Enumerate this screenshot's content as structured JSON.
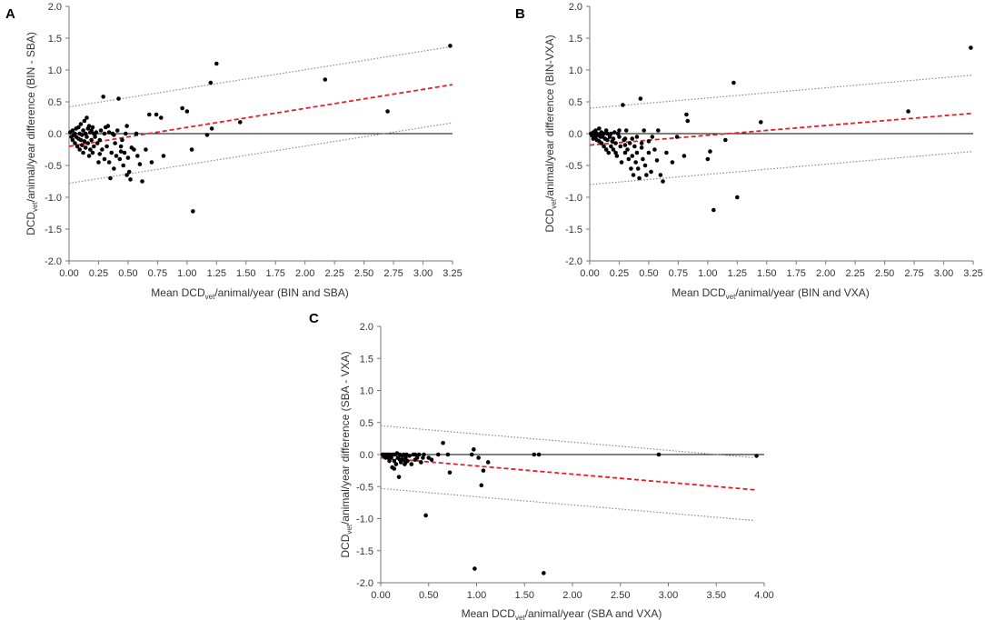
{
  "chart_data": [
    {
      "panel": "A",
      "type": "scatter",
      "xlabel_parts": [
        "Mean DCD",
        "vet",
        "/animal/year (BIN and SBA)"
      ],
      "ylabel_parts": [
        "DCD",
        "vet",
        "/animal/year difference (BIN - SBA)"
      ],
      "xlim": [
        0,
        3.25
      ],
      "ylim": [
        -2.0,
        2.0
      ],
      "xticks": [
        "0.00",
        "0.25",
        "0.50",
        "0.75",
        "1.00",
        "1.25",
        "1.50",
        "1.75",
        "2.00",
        "2.25",
        "2.50",
        "2.75",
        "3.00",
        "3.25"
      ],
      "yticks": [
        "2.0",
        "1.5",
        "1.0",
        "0.5",
        "0.0",
        "-0.5",
        "-1.0",
        "-1.5",
        "-2.0"
      ],
      "zero_line": 0,
      "trend_line": {
        "x": [
          0,
          3.25
        ],
        "y": [
          -0.2,
          0.77
        ]
      },
      "upper_limit": {
        "x": [
          0,
          3.25
        ],
        "y": [
          0.42,
          1.37
        ]
      },
      "lower_limit": {
        "x": [
          0,
          3.25
        ],
        "y": [
          -0.78,
          0.17
        ]
      },
      "points": [
        [
          0.01,
          0.02
        ],
        [
          0.02,
          -0.05
        ],
        [
          0.03,
          0.05
        ],
        [
          0.03,
          -0.1
        ],
        [
          0.04,
          -0.02
        ],
        [
          0.05,
          0.0
        ],
        [
          0.05,
          -0.15
        ],
        [
          0.06,
          0.08
        ],
        [
          0.06,
          -0.05
        ],
        [
          0.07,
          -0.2
        ],
        [
          0.08,
          0.1
        ],
        [
          0.08,
          -0.08
        ],
        [
          0.09,
          0.0
        ],
        [
          0.09,
          -0.25
        ],
        [
          0.1,
          0.15
        ],
        [
          0.1,
          -0.1
        ],
        [
          0.11,
          -0.02
        ],
        [
          0.11,
          -0.18
        ],
        [
          0.12,
          0.05
        ],
        [
          0.12,
          -0.3
        ],
        [
          0.13,
          0.2
        ],
        [
          0.13,
          -0.12
        ],
        [
          0.14,
          0.0
        ],
        [
          0.14,
          -0.22
        ],
        [
          0.15,
          0.25
        ],
        [
          0.15,
          -0.05
        ],
        [
          0.16,
          -0.15
        ],
        [
          0.16,
          0.08
        ],
        [
          0.17,
          -0.35
        ],
        [
          0.17,
          0.12
        ],
        [
          0.18,
          0.02
        ],
        [
          0.18,
          -0.25
        ],
        [
          0.19,
          0.05
        ],
        [
          0.19,
          -0.1
        ],
        [
          0.2,
          -0.3
        ],
        [
          0.2,
          0.1
        ],
        [
          0.21,
          0.0
        ],
        [
          0.21,
          -0.2
        ],
        [
          0.22,
          -0.05
        ],
        [
          0.23,
          0.02
        ],
        [
          0.24,
          -0.15
        ],
        [
          0.25,
          -0.45
        ],
        [
          0.26,
          -0.1
        ],
        [
          0.27,
          0.05
        ],
        [
          0.28,
          -0.25
        ],
        [
          0.29,
          0.58
        ],
        [
          0.3,
          -0.4
        ],
        [
          0.31,
          0.1
        ],
        [
          0.32,
          -0.2
        ],
        [
          0.33,
          0.12
        ],
        [
          0.34,
          -0.45
        ],
        [
          0.35,
          -0.7
        ],
        [
          0.36,
          -0.3
        ],
        [
          0.37,
          0.0
        ],
        [
          0.38,
          -0.55
        ],
        [
          0.39,
          -0.15
        ],
        [
          0.4,
          -0.35
        ],
        [
          0.41,
          0.05
        ],
        [
          0.42,
          0.55
        ],
        [
          0.43,
          -0.4
        ],
        [
          0.44,
          -0.2
        ],
        [
          0.45,
          -0.1
        ],
        [
          0.46,
          -0.5
        ],
        [
          0.47,
          -0.3
        ],
        [
          0.48,
          0.0
        ],
        [
          0.49,
          -0.65
        ],
        [
          0.5,
          -0.38
        ],
        [
          0.51,
          -0.6
        ],
        [
          0.52,
          -0.72
        ],
        [
          0.55,
          -0.25
        ],
        [
          0.58,
          -0.35
        ],
        [
          0.62,
          -0.75
        ],
        [
          0.65,
          -0.25
        ],
        [
          0.68,
          0.3
        ],
        [
          0.7,
          -0.45
        ],
        [
          0.74,
          0.3
        ],
        [
          0.78,
          0.25
        ],
        [
          0.8,
          -0.35
        ],
        [
          0.96,
          0.4
        ],
        [
          1.0,
          0.35
        ],
        [
          1.04,
          -0.25
        ],
        [
          1.05,
          -1.22
        ],
        [
          1.17,
          -0.02
        ],
        [
          1.2,
          0.8
        ],
        [
          1.21,
          0.08
        ],
        [
          1.25,
          1.1
        ],
        [
          1.45,
          0.18
        ],
        [
          2.17,
          0.85
        ],
        [
          2.7,
          0.35
        ],
        [
          3.23,
          1.38
        ],
        [
          0.22,
          0.0
        ],
        [
          0.26,
          -0.32
        ],
        [
          0.3,
          0.0
        ],
        [
          0.34,
          0.02
        ],
        [
          0.38,
          -0.02
        ],
        [
          0.44,
          -0.28
        ],
        [
          0.49,
          0.12
        ],
        [
          0.53,
          -0.22
        ],
        [
          0.57,
          0.0
        ],
        [
          0.6,
          -0.48
        ]
      ]
    },
    {
      "panel": "B",
      "type": "scatter",
      "xlabel_parts": [
        "Mean DCD",
        "vet",
        "/animal/year (BIN and VXA)"
      ],
      "ylabel_parts": [
        "DCD",
        "vet",
        "/animal/year difference (BIN-VXA)"
      ],
      "xlim": [
        0,
        3.25
      ],
      "ylim": [
        -2.0,
        2.0
      ],
      "xticks": [
        "0.00",
        "0.25",
        "0.50",
        "0.75",
        "1.00",
        "1.25",
        "1.50",
        "1.75",
        "2.00",
        "2.25",
        "2.50",
        "2.75",
        "3.00",
        "3.25"
      ],
      "yticks": [
        "2.0",
        "1.5",
        "1.0",
        "0.5",
        "0.0",
        "-0.5",
        "-1.0",
        "-1.5",
        "-2.0"
      ],
      "zero_line": 0,
      "trend_line": {
        "x": [
          0,
          3.25
        ],
        "y": [
          -0.18,
          0.32
        ]
      },
      "upper_limit": {
        "x": [
          0,
          3.25
        ],
        "y": [
          0.4,
          0.92
        ]
      },
      "lower_limit": {
        "x": [
          0,
          3.25
        ],
        "y": [
          -0.8,
          -0.28
        ]
      },
      "points": [
        [
          0.01,
          0.0
        ],
        [
          0.02,
          -0.03
        ],
        [
          0.03,
          0.02
        ],
        [
          0.03,
          -0.08
        ],
        [
          0.04,
          0.0
        ],
        [
          0.05,
          -0.05
        ],
        [
          0.05,
          0.05
        ],
        [
          0.06,
          -0.1
        ],
        [
          0.06,
          0.0
        ],
        [
          0.07,
          -0.02
        ],
        [
          0.08,
          0.08
        ],
        [
          0.08,
          -0.12
        ],
        [
          0.09,
          0.0
        ],
        [
          0.09,
          -0.05
        ],
        [
          0.1,
          0.02
        ],
        [
          0.1,
          -0.15
        ],
        [
          0.11,
          -0.05
        ],
        [
          0.12,
          0.0
        ],
        [
          0.12,
          -0.2
        ],
        [
          0.13,
          -0.08
        ],
        [
          0.14,
          0.05
        ],
        [
          0.14,
          -0.25
        ],
        [
          0.15,
          0.0
        ],
        [
          0.15,
          -0.1
        ],
        [
          0.16,
          -0.3
        ],
        [
          0.17,
          -0.05
        ],
        [
          0.18,
          -0.2
        ],
        [
          0.18,
          0.0
        ],
        [
          0.19,
          -0.12
        ],
        [
          0.2,
          -0.25
        ],
        [
          0.21,
          0.02
        ],
        [
          0.22,
          -0.15
        ],
        [
          0.23,
          -0.35
        ],
        [
          0.24,
          0.0
        ],
        [
          0.25,
          -0.05
        ],
        [
          0.26,
          -0.2
        ],
        [
          0.27,
          -0.45
        ],
        [
          0.28,
          0.45
        ],
        [
          0.29,
          -0.1
        ],
        [
          0.3,
          -0.3
        ],
        [
          0.31,
          0.05
        ],
        [
          0.32,
          -0.25
        ],
        [
          0.33,
          -0.4
        ],
        [
          0.34,
          -0.15
        ],
        [
          0.35,
          -0.55
        ],
        [
          0.36,
          -0.35
        ],
        [
          0.37,
          -0.65
        ],
        [
          0.38,
          -0.2
        ],
        [
          0.39,
          -0.45
        ],
        [
          0.4,
          -0.3
        ],
        [
          0.41,
          -0.55
        ],
        [
          0.42,
          -0.7
        ],
        [
          0.43,
          0.55
        ],
        [
          0.44,
          -0.15
        ],
        [
          0.45,
          -0.4
        ],
        [
          0.46,
          0.05
        ],
        [
          0.47,
          -0.5
        ],
        [
          0.48,
          -0.65
        ],
        [
          0.5,
          -0.3
        ],
        [
          0.52,
          -0.6
        ],
        [
          0.55,
          -0.25
        ],
        [
          0.58,
          0.05
        ],
        [
          0.6,
          -0.65
        ],
        [
          0.62,
          -0.75
        ],
        [
          0.65,
          -0.3
        ],
        [
          0.7,
          -0.45
        ],
        [
          0.74,
          -0.05
        ],
        [
          0.8,
          -0.35
        ],
        [
          0.82,
          0.3
        ],
        [
          0.83,
          0.2
        ],
        [
          1.0,
          -0.4
        ],
        [
          1.02,
          -0.28
        ],
        [
          1.05,
          -1.2
        ],
        [
          1.15,
          -0.1
        ],
        [
          1.22,
          0.8
        ],
        [
          1.25,
          -1.0
        ],
        [
          1.45,
          0.18
        ],
        [
          2.7,
          0.35
        ],
        [
          3.23,
          1.35
        ],
        [
          0.2,
          -0.08
        ],
        [
          0.25,
          0.05
        ],
        [
          0.3,
          -0.08
        ],
        [
          0.36,
          -0.08
        ],
        [
          0.4,
          -0.05
        ],
        [
          0.44,
          -0.22
        ],
        [
          0.5,
          -0.12
        ],
        [
          0.53,
          -0.05
        ],
        [
          0.57,
          -0.42
        ],
        [
          0.3,
          -0.18
        ],
        [
          0.22,
          -0.3
        ]
      ]
    },
    {
      "panel": "C",
      "type": "scatter",
      "xlabel_parts": [
        "Mean DCD",
        "vet",
        "/animal/year (SBA and VXA)"
      ],
      "ylabel_parts": [
        "DCD",
        "vet",
        "/animal/year difference (SBA - VXA)"
      ],
      "xlim": [
        0,
        4.0
      ],
      "ylim": [
        -2.0,
        2.0
      ],
      "xticks": [
        "0.00",
        "0.50",
        "1.00",
        "1.50",
        "2.00",
        "2.50",
        "3.00",
        "3.50",
        "4.00"
      ],
      "yticks": [
        "2.0",
        "1.5",
        "1.0",
        "0.5",
        "0.0",
        "-0.5",
        "-1.0",
        "-1.5",
        "-2.0"
      ],
      "zero_line": 0,
      "trend_line": {
        "x": [
          0,
          3.9
        ],
        "y": [
          -0.05,
          -0.55
        ]
      },
      "upper_limit": {
        "x": [
          0,
          3.9
        ],
        "y": [
          0.45,
          -0.05
        ]
      },
      "lower_limit": {
        "x": [
          0,
          3.9
        ],
        "y": [
          -0.53,
          -1.03
        ]
      },
      "points": [
        [
          0.02,
          0.0
        ],
        [
          0.03,
          -0.02
        ],
        [
          0.04,
          0.0
        ],
        [
          0.05,
          -0.05
        ],
        [
          0.06,
          0.0
        ],
        [
          0.07,
          -0.02
        ],
        [
          0.08,
          0.0
        ],
        [
          0.09,
          -0.1
        ],
        [
          0.1,
          0.0
        ],
        [
          0.11,
          -0.05
        ],
        [
          0.12,
          -0.2
        ],
        [
          0.13,
          0.0
        ],
        [
          0.14,
          -0.1
        ],
        [
          0.15,
          0.0
        ],
        [
          0.16,
          -0.15
        ],
        [
          0.17,
          0.02
        ],
        [
          0.18,
          -0.05
        ],
        [
          0.19,
          -0.35
        ],
        [
          0.2,
          0.0
        ],
        [
          0.21,
          -0.12
        ],
        [
          0.22,
          -0.02
        ],
        [
          0.23,
          -0.08
        ],
        [
          0.24,
          0.0
        ],
        [
          0.25,
          -0.15
        ],
        [
          0.26,
          -0.05
        ],
        [
          0.27,
          0.0
        ],
        [
          0.28,
          -0.1
        ],
        [
          0.3,
          -0.02
        ],
        [
          0.32,
          -0.15
        ],
        [
          0.34,
          0.0
        ],
        [
          0.36,
          -0.08
        ],
        [
          0.38,
          -0.05
        ],
        [
          0.4,
          0.0
        ],
        [
          0.42,
          -0.12
        ],
        [
          0.45,
          0.0
        ],
        [
          0.47,
          -0.95
        ],
        [
          0.5,
          -0.05
        ],
        [
          0.53,
          -0.08
        ],
        [
          0.6,
          0.0
        ],
        [
          0.65,
          0.18
        ],
        [
          0.7,
          0.0
        ],
        [
          0.72,
          -0.28
        ],
        [
          0.95,
          0.0
        ],
        [
          0.97,
          0.08
        ],
        [
          0.98,
          -1.78
        ],
        [
          1.02,
          -0.05
        ],
        [
          1.05,
          -0.48
        ],
        [
          1.07,
          -0.25
        ],
        [
          1.12,
          -0.12
        ],
        [
          1.6,
          0.0
        ],
        [
          1.65,
          0.0
        ],
        [
          1.7,
          -1.85
        ],
        [
          2.9,
          0.0
        ],
        [
          3.92,
          -0.02
        ],
        [
          0.08,
          -0.05
        ],
        [
          0.14,
          -0.22
        ],
        [
          0.2,
          -0.08
        ],
        [
          0.26,
          -0.12
        ],
        [
          0.36,
          0.0
        ],
        [
          0.44,
          -0.05
        ]
      ]
    }
  ]
}
